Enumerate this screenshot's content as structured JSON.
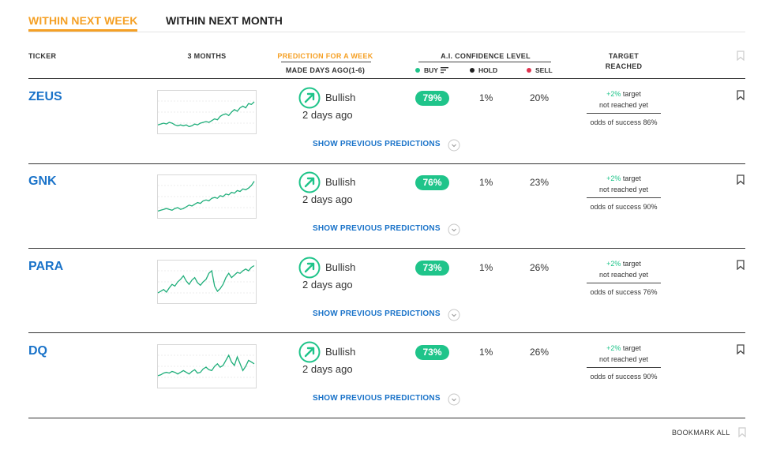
{
  "tabs": [
    {
      "label": "WITHIN NEXT WEEK",
      "active": true
    },
    {
      "label": "WITHIN NEXT MONTH",
      "active": false
    }
  ],
  "columns": {
    "ticker": "TICKER",
    "months": "3 MONTHS",
    "prediction": "PREDICTION FOR A WEEK",
    "made_days_ago": "MADE DAYS AGO(1-6)",
    "confidence": "A.I. CONFIDENCE LEVEL",
    "buy": "BUY",
    "hold": "HOLD",
    "sell": "SELL",
    "target_line1": "TARGET",
    "target_line2": "REACHED"
  },
  "colors": {
    "accent": "#f5a025",
    "link": "#1a73c9",
    "buy": "#1fc48a",
    "hold": "#222222",
    "sell": "#e0334f"
  },
  "rows": [
    {
      "ticker": "ZEUS",
      "direction": "Bullish",
      "days_ago": "2 days ago",
      "buy": "79%",
      "hold": "1%",
      "sell": "20%",
      "target_pct": "+2%",
      "target_text": "target",
      "target_status": "not reached yet",
      "odds": "odds of success 86%",
      "show_prev": "SHOW PREVIOUS PREDICTIONS",
      "spark": [
        30,
        31,
        32,
        31,
        33,
        32,
        30,
        29,
        30,
        29,
        30,
        28,
        29,
        31,
        30,
        32,
        33,
        34,
        33,
        35,
        37,
        36,
        40,
        42,
        43,
        41,
        45,
        48,
        46,
        50,
        52,
        50,
        55,
        54,
        57
      ]
    },
    {
      "ticker": "GNK",
      "direction": "Bullish",
      "days_ago": "2 days ago",
      "buy": "76%",
      "hold": "1%",
      "sell": "23%",
      "target_pct": "+2%",
      "target_text": "target",
      "target_status": "not reached yet",
      "odds": "odds of success 90%",
      "show_prev": "SHOW PREVIOUS PREDICTIONS",
      "spark": [
        28,
        29,
        30,
        31,
        30,
        29,
        31,
        32,
        30,
        31,
        33,
        35,
        34,
        36,
        38,
        37,
        40,
        41,
        40,
        43,
        44,
        43,
        46,
        45,
        48,
        47,
        50,
        49,
        52,
        51,
        54,
        53,
        55,
        58,
        63
      ]
    },
    {
      "ticker": "PARA",
      "direction": "Bullish",
      "days_ago": "2 days ago",
      "buy": "73%",
      "hold": "1%",
      "sell": "26%",
      "target_pct": "+2%",
      "target_text": "target",
      "target_status": "not reached yet",
      "odds": "odds of success 76%",
      "show_prev": "SHOW PREVIOUS PREDICTIONS",
      "spark": [
        32,
        34,
        36,
        33,
        38,
        42,
        40,
        45,
        48,
        52,
        46,
        42,
        47,
        50,
        44,
        41,
        45,
        48,
        55,
        58,
        40,
        34,
        37,
        42,
        50,
        55,
        50,
        53,
        56,
        55,
        58,
        60,
        58,
        62,
        64
      ]
    },
    {
      "ticker": "DQ",
      "direction": "Bullish",
      "days_ago": "2 days ago",
      "buy": "73%",
      "hold": "1%",
      "sell": "26%",
      "target_pct": "+2%",
      "target_text": "target",
      "target_status": "not reached yet",
      "odds": "odds of success 90%",
      "show_prev": "SHOW PREVIOUS PREDICTIONS",
      "spark": [
        34,
        35,
        37,
        38,
        37,
        39,
        38,
        36,
        38,
        40,
        38,
        36,
        39,
        41,
        37,
        38,
        42,
        44,
        41,
        40,
        45,
        48,
        44,
        46,
        52,
        58,
        50,
        46,
        56,
        48,
        40,
        45,
        52,
        50,
        48
      ]
    }
  ],
  "footer": {
    "bookmark_all": "BOOKMARK ALL"
  }
}
